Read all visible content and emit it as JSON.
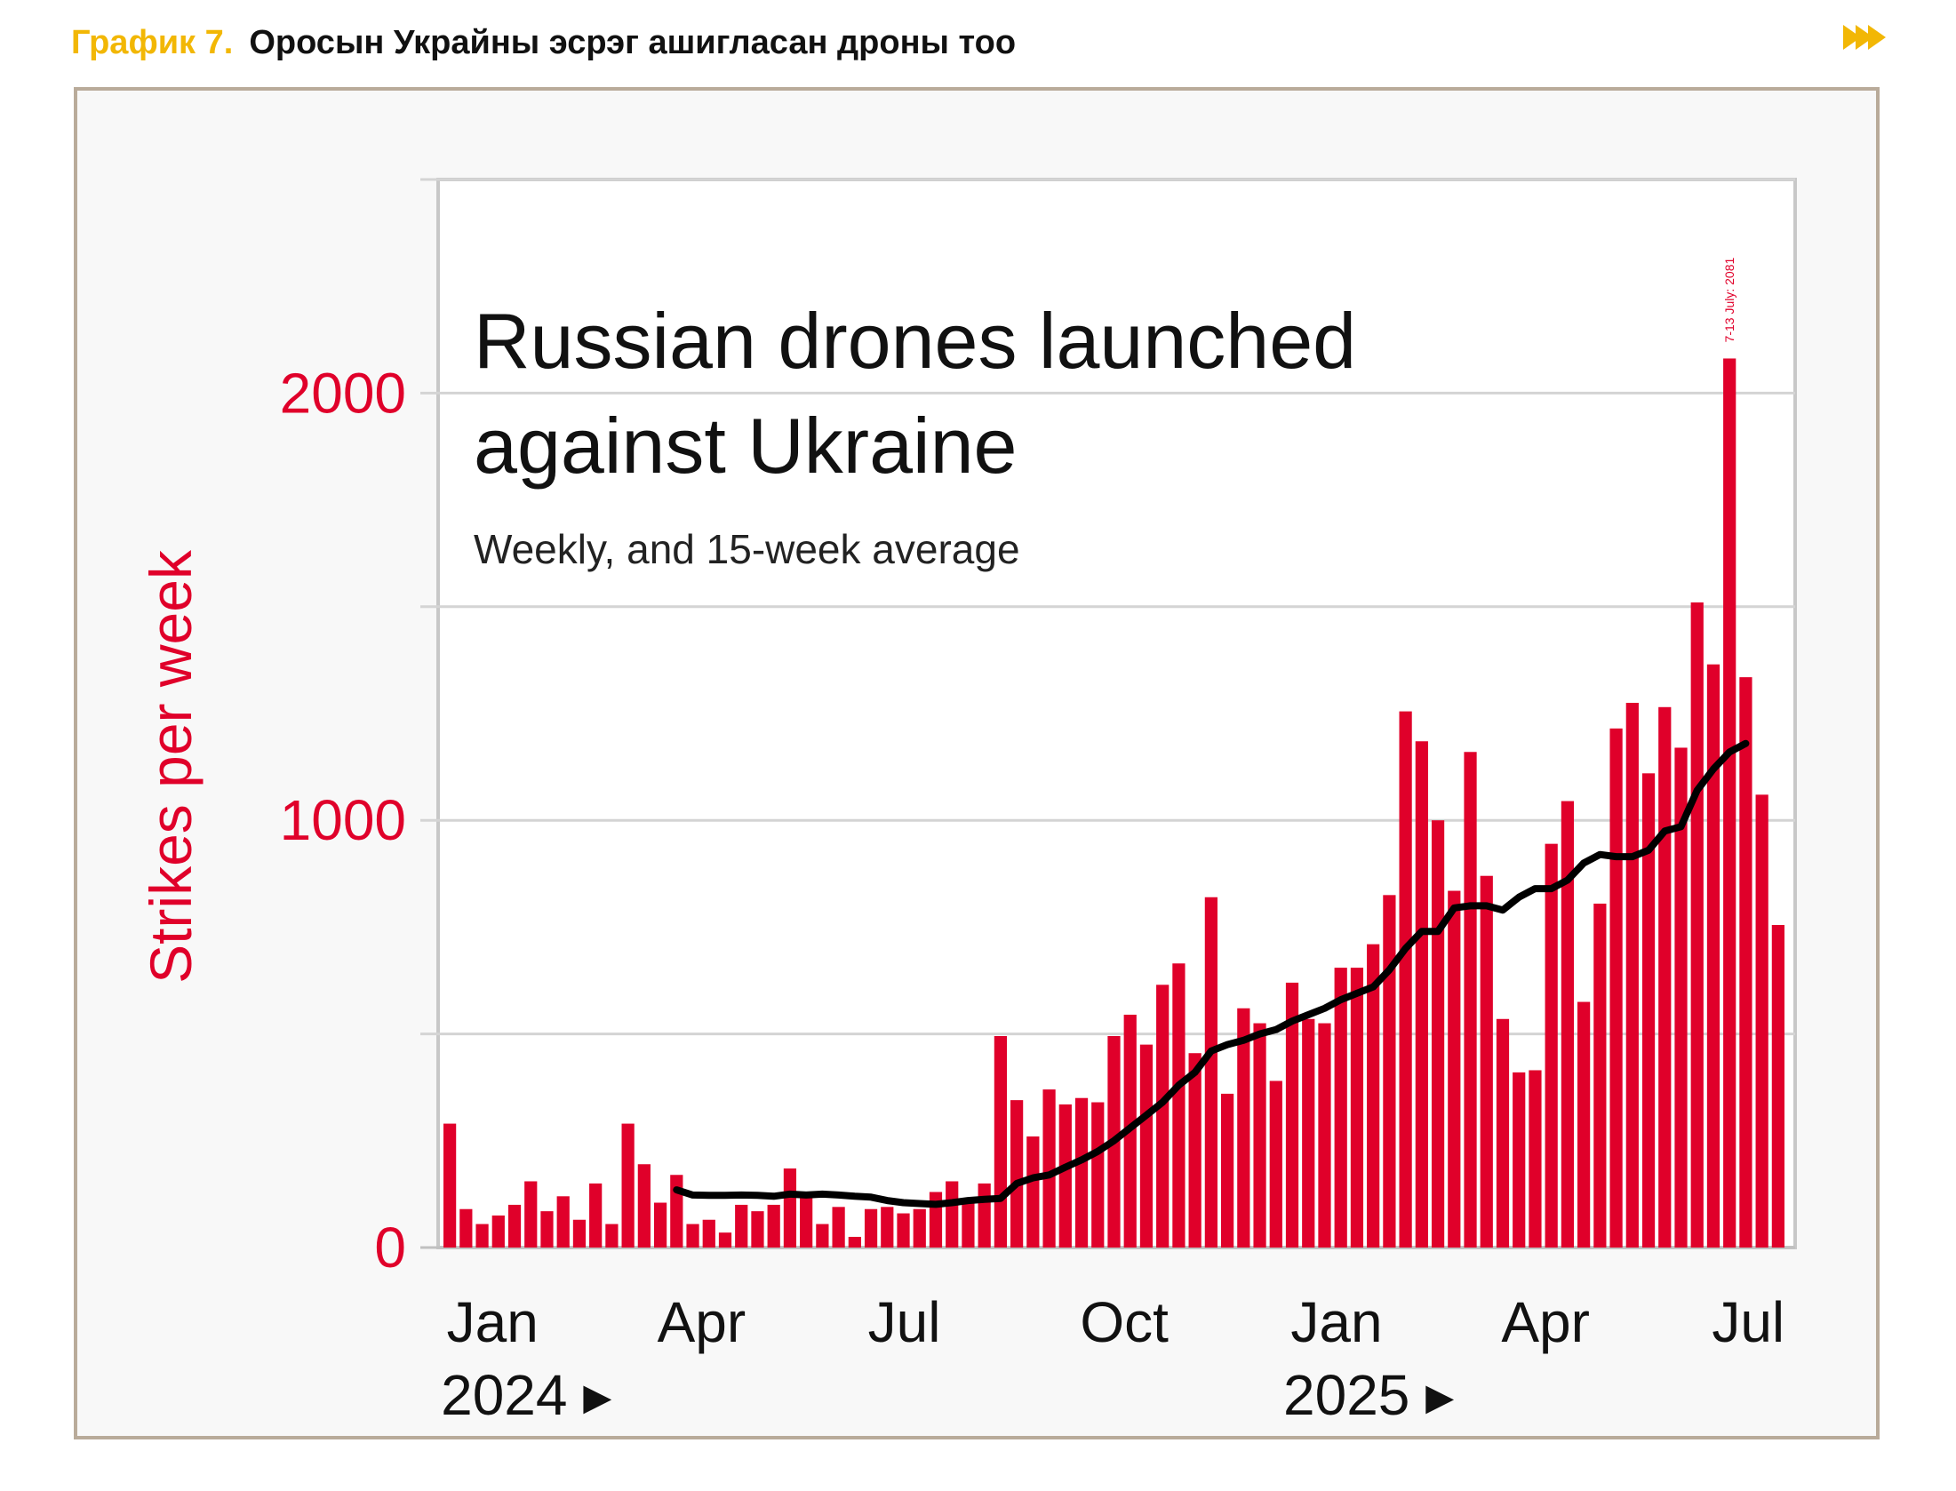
{
  "header": {
    "figure_label": "График 7.",
    "figure_title": "Оросын Украйны эсрэг ашигласан дроны тоо",
    "next_icon": "double-chevron-right-icon"
  },
  "colors": {
    "bar": "#e0002a",
    "line": "#000000",
    "axis_text": "#e0002a",
    "header_accent": "#f2b705",
    "frame": "#b9ab9a"
  },
  "chart_data": {
    "type": "bar",
    "title": "Russian drones launched against Ukraine",
    "title_lines": [
      "Russian drones launched",
      "against Ukraine"
    ],
    "subtitle": "Weekly, and 15-week average",
    "ylabel": "Strikes per week",
    "xlabel": "",
    "ylim": [
      0,
      2500
    ],
    "yticks": [
      0,
      1000,
      2000
    ],
    "ytick_labels": [
      "0",
      "1000",
      "2000"
    ],
    "grid_values": [
      500,
      1000,
      1500,
      2000,
      2500
    ],
    "x_month_labels": [
      {
        "label": "Jan",
        "week": 0.2
      },
      {
        "label": "Apr",
        "week": 13.2
      },
      {
        "label": "Jul",
        "week": 26.2
      },
      {
        "label": "Oct",
        "week": 39.3
      },
      {
        "label": "Jan",
        "week": 52.3
      },
      {
        "label": "Apr",
        "week": 65.3
      },
      {
        "label": "Jul",
        "week": 78.3
      }
    ],
    "year_labels": [
      {
        "label": "2024 ▸",
        "week": 0.5
      },
      {
        "label": "2025 ▸",
        "week": 52.5
      }
    ],
    "annotation": {
      "text": "7-13 July: 2081",
      "week": 79
    },
    "series": [
      {
        "name": "Weekly",
        "values": [
          290,
          90,
          55,
          75,
          100,
          155,
          85,
          120,
          65,
          150,
          55,
          290,
          195,
          105,
          170,
          55,
          65,
          35,
          100,
          85,
          100,
          185,
          120,
          55,
          95,
          25,
          90,
          95,
          80,
          90,
          130,
          155,
          110,
          150,
          495,
          345,
          260,
          370,
          335,
          350,
          340,
          495,
          545,
          475,
          615,
          665,
          455,
          820,
          360,
          560,
          525,
          390,
          620,
          535,
          525,
          655,
          655,
          710,
          825,
          1255,
          1185,
          1000,
          835,
          1160,
          870,
          535,
          410,
          415,
          945,
          1045,
          575,
          805,
          1215,
          1275,
          1110,
          1265,
          1170,
          1510,
          1365,
          2081,
          1335,
          1060,
          755
        ]
      },
      {
        "name": "15-week average",
        "start_week": 14,
        "values": [
          135,
          123,
          122,
          122,
          123,
          122,
          120,
          125,
          123,
          125,
          123,
          120,
          118,
          110,
          105,
          103,
          101,
          105,
          110,
          113,
          115,
          150,
          163,
          170,
          188,
          205,
          225,
          250,
          280,
          310,
          340,
          380,
          410,
          460,
          475,
          485,
          500,
          510,
          530,
          545,
          560,
          580,
          595,
          610,
          650,
          700,
          740,
          740,
          795,
          800,
          800,
          790,
          820,
          840,
          840,
          860,
          900,
          920,
          915,
          915,
          930,
          975,
          985,
          1070,
          1120,
          1160,
          1180
        ]
      }
    ]
  }
}
